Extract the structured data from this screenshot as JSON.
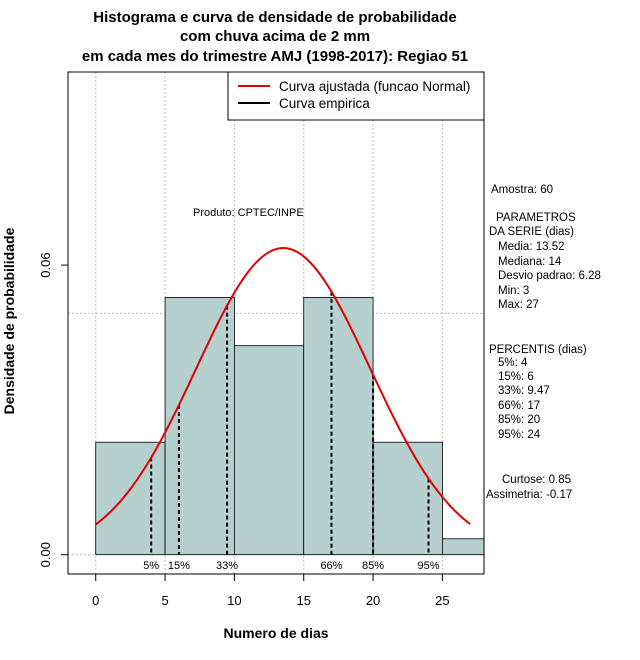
{
  "chart_data": {
    "type": "histogram",
    "title_lines": [
      "Histograma e curva de densidade de probabilidade",
      "com chuva acima de 2 mm",
      "em cada mes do trimestre AMJ (1998-2017): Regiao 51"
    ],
    "xlabel": "Numero de dias",
    "ylabel": "Densidade de probabilidade",
    "xlim": [
      -2,
      28
    ],
    "ylim": [
      -0.004,
      0.1
    ],
    "x_ticks": [
      0,
      5,
      10,
      15,
      20,
      25
    ],
    "x_tick_labels": [
      "0",
      "5",
      "10",
      "15",
      "20",
      "25"
    ],
    "y_ticks": [
      0.0,
      0.06
    ],
    "y_tick_labels": [
      "0.00",
      "0.06"
    ],
    "grid_x": [
      0,
      5,
      10,
      15,
      20,
      25
    ],
    "grid_y": [
      0.0,
      0.05,
      0.1
    ],
    "bins": [
      {
        "from": 0,
        "to": 5,
        "density": 0.0233
      },
      {
        "from": 5,
        "to": 10,
        "density": 0.0533
      },
      {
        "from": 10,
        "to": 15,
        "density": 0.0433
      },
      {
        "from": 15,
        "to": 20,
        "density": 0.0533
      },
      {
        "from": 20,
        "to": 25,
        "density": 0.0233
      },
      {
        "from": 25,
        "to": 30,
        "density": 0.0033
      }
    ],
    "bar_color": "#b6cfcf",
    "normal_curve": {
      "mean": 13.52,
      "sd": 6.28,
      "from": 0,
      "to": 27,
      "color": "#e00000"
    },
    "percentiles": [
      {
        "label": "5%",
        "x": 4
      },
      {
        "label": "15%",
        "x": 6
      },
      {
        "label": "33%",
        "x": 9.47
      },
      {
        "label": "66%",
        "x": 17
      },
      {
        "label": "85%",
        "x": 20
      },
      {
        "label": "95%",
        "x": 24
      }
    ],
    "legend": [
      {
        "label": "Curva ajustada (funcao Normal)",
        "color": "#e00000"
      },
      {
        "label": "Curva empirica",
        "color": "#000000"
      }
    ],
    "legend_position": "top-right",
    "product_label": "Produto: CPTEC/INPE"
  },
  "stats": {
    "sample": "Amostra: 60",
    "params_title_1": "PARAMETROS",
    "params_title_2": "DA SERIE (dias)",
    "media": "Media: 13.52",
    "mediana": "Mediana: 14",
    "desvio": "Desvio padrao: 6.28",
    "min": "Min: 3",
    "max": "Max: 27",
    "perc_title": "PERCENTIS (dias)",
    "p5": "5%: 4",
    "p15": "15%: 6",
    "p33": "33%: 9.47",
    "p66": "66%: 17",
    "p85": "85%: 20",
    "p95": "95%: 24",
    "curtose": "Curtose: 0.85",
    "assimetria": "Assimetria: -0.17"
  }
}
